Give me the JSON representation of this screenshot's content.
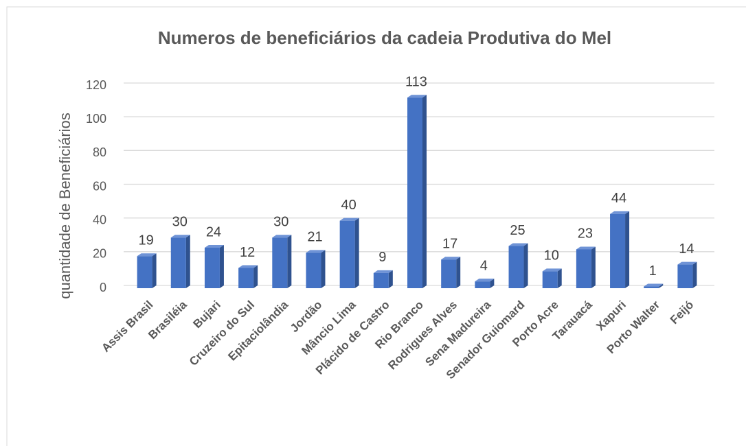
{
  "chart_data": {
    "type": "bar",
    "title": "Numeros de beneficiários da cadeia Produtiva do Mel",
    "y_label": "quantidade  de Beneficiários",
    "categories": [
      "Assis Brasil",
      "Brasiléia",
      "Bujari",
      "Cruzeiro do Sul",
      "Epitaciolândia",
      "Jordão",
      "Mâncio Lima",
      "Plácido de Castro",
      "Rio Branco",
      "Rodrigues Alves",
      "Sena Madureira",
      "Senador Guiomard",
      "Porto Acre",
      "Tarauacá",
      "Xapuri",
      "Porto Walter",
      "Feijó"
    ],
    "values": [
      19,
      30,
      24,
      12,
      30,
      21,
      40,
      9,
      113,
      17,
      4,
      25,
      10,
      23,
      44,
      1,
      14
    ],
    "color": "#4472c4",
    "ylim": [
      0,
      120
    ],
    "yticks": [
      0,
      20,
      40,
      60,
      80,
      100,
      120
    ],
    "grid": true
  }
}
